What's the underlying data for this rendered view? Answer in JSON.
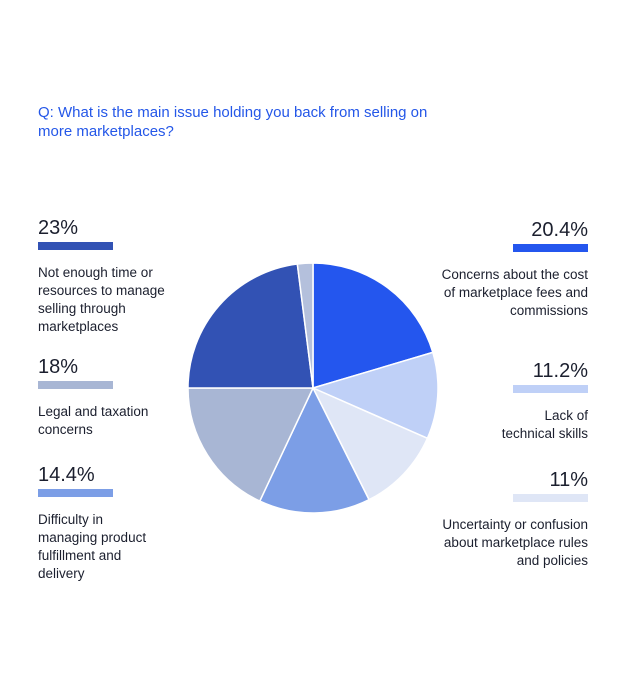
{
  "question": "Q: What is the main issue holding you back from selling on more marketplaces?",
  "chart_data": {
    "type": "pie",
    "title": "Q: What is the main issue holding you back from selling on more marketplaces?",
    "start_angle_deg": 0,
    "direction": "clockwise",
    "slices": [
      {
        "label": "Concerns about the cost of marketplace fees and commissions",
        "display": "20.4%",
        "value": 20.4,
        "color": "#2456ee"
      },
      {
        "label": "Lack of technical skills",
        "display": "11.2%",
        "value": 11.2,
        "color": "#bfd0f7"
      },
      {
        "label": "Uncertainty or confusion about marketplace rules and policies",
        "display": "11%",
        "value": 11.0,
        "color": "#dfe6f6"
      },
      {
        "label": "Difficulty in managing product fulfillment and delivery",
        "display": "14.4%",
        "value": 14.4,
        "color": "#7c9ee6"
      },
      {
        "label": "Legal and taxation concerns",
        "display": "18%",
        "value": 18.0,
        "color": "#a8b6d4"
      },
      {
        "label": "Not enough time or resources to manage selling through marketplaces",
        "display": "23%",
        "value": 23.0,
        "color": "#3252b4"
      },
      {
        "label": "",
        "display": "",
        "value": 2.0,
        "color": "#b4c0dc"
      }
    ]
  },
  "legend_left": [
    {
      "pct": "23%",
      "color": "#3252b4",
      "desc": "Not enough time or resources to manage selling through marketplaces"
    },
    {
      "pct": "18%",
      "color": "#a8b6d4",
      "desc": "Legal and taxation concerns"
    },
    {
      "pct": "14.4%",
      "color": "#7c9ee6",
      "desc": "Difficulty in managing product fulfillment and delivery"
    }
  ],
  "legend_right": [
    {
      "pct": "20.4%",
      "color": "#2456ee",
      "desc": "Concerns about the cost of marketplace fees and commissions"
    },
    {
      "pct": "11.2%",
      "color": "#bfd0f7",
      "desc": "Lack of technical skills"
    },
    {
      "pct": "11%",
      "color": "#dfe6f6",
      "desc": "Uncertainty or confusion about marketplace rules and policies"
    }
  ]
}
